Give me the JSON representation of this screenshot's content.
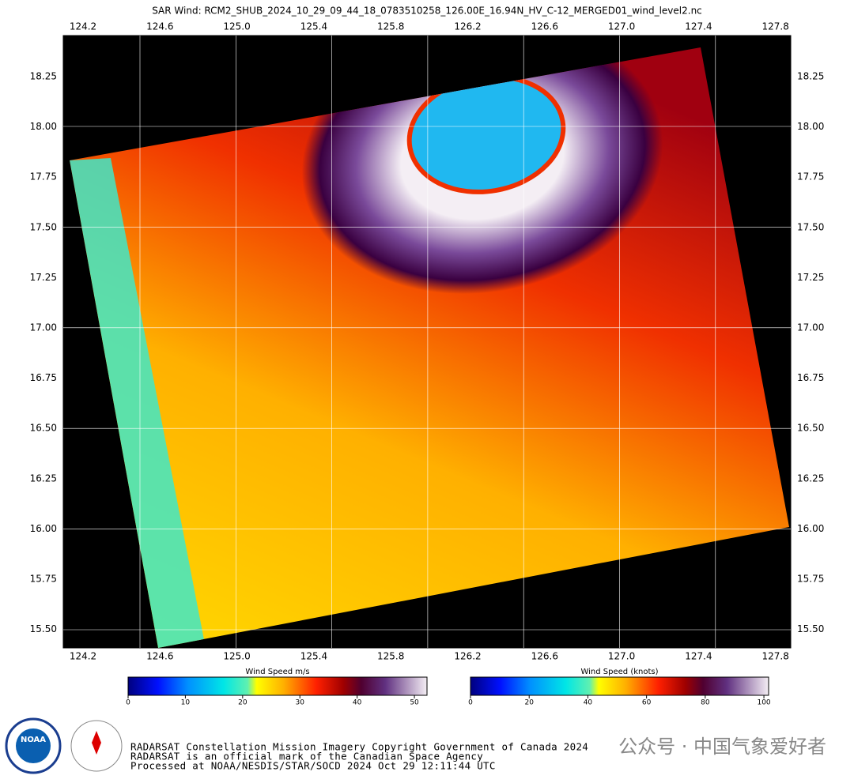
{
  "header": {
    "title": "SAR Wind: RCM2_SHUB_2024_10_29_09_44_18_0783510258_126.00E_16.94N_HV_C-12_MERGED01_wind_level2.nc"
  },
  "map": {
    "lon_ticks": [
      "124.2",
      "124.6",
      "125.0",
      "125.4",
      "125.8",
      "126.2",
      "126.6",
      "127.0",
      "127.4",
      "127.8"
    ],
    "lat_ticks": [
      "18.25",
      "18.00",
      "17.75",
      "17.50",
      "17.25",
      "17.00",
      "16.75",
      "16.50",
      "16.25",
      "16.00",
      "15.75",
      "15.50"
    ]
  },
  "colorbars": [
    {
      "label": "Wind Speed m/s",
      "ticks": [
        0,
        10,
        20,
        30,
        40,
        50
      ],
      "range": [
        0,
        52.2
      ]
    },
    {
      "label": "Wind Speed (knots)",
      "ticks": [
        0,
        20,
        40,
        60,
        80,
        100
      ],
      "range": [
        0,
        101.6
      ]
    }
  ],
  "logos": {
    "noaa": "NOAA"
  },
  "credits": [
    "RADARSAT Constellation Mission Imagery Copyright Government of Canada 2024",
    "RADARSAT is an official mark of the Canadian Space Agency",
    "Processed at NOAA/NESDIS/STAR/SOCD 2024 Oct 29 12:11:44 UTC"
  ],
  "watermark": "公众号 · 中国气象爱好者"
}
